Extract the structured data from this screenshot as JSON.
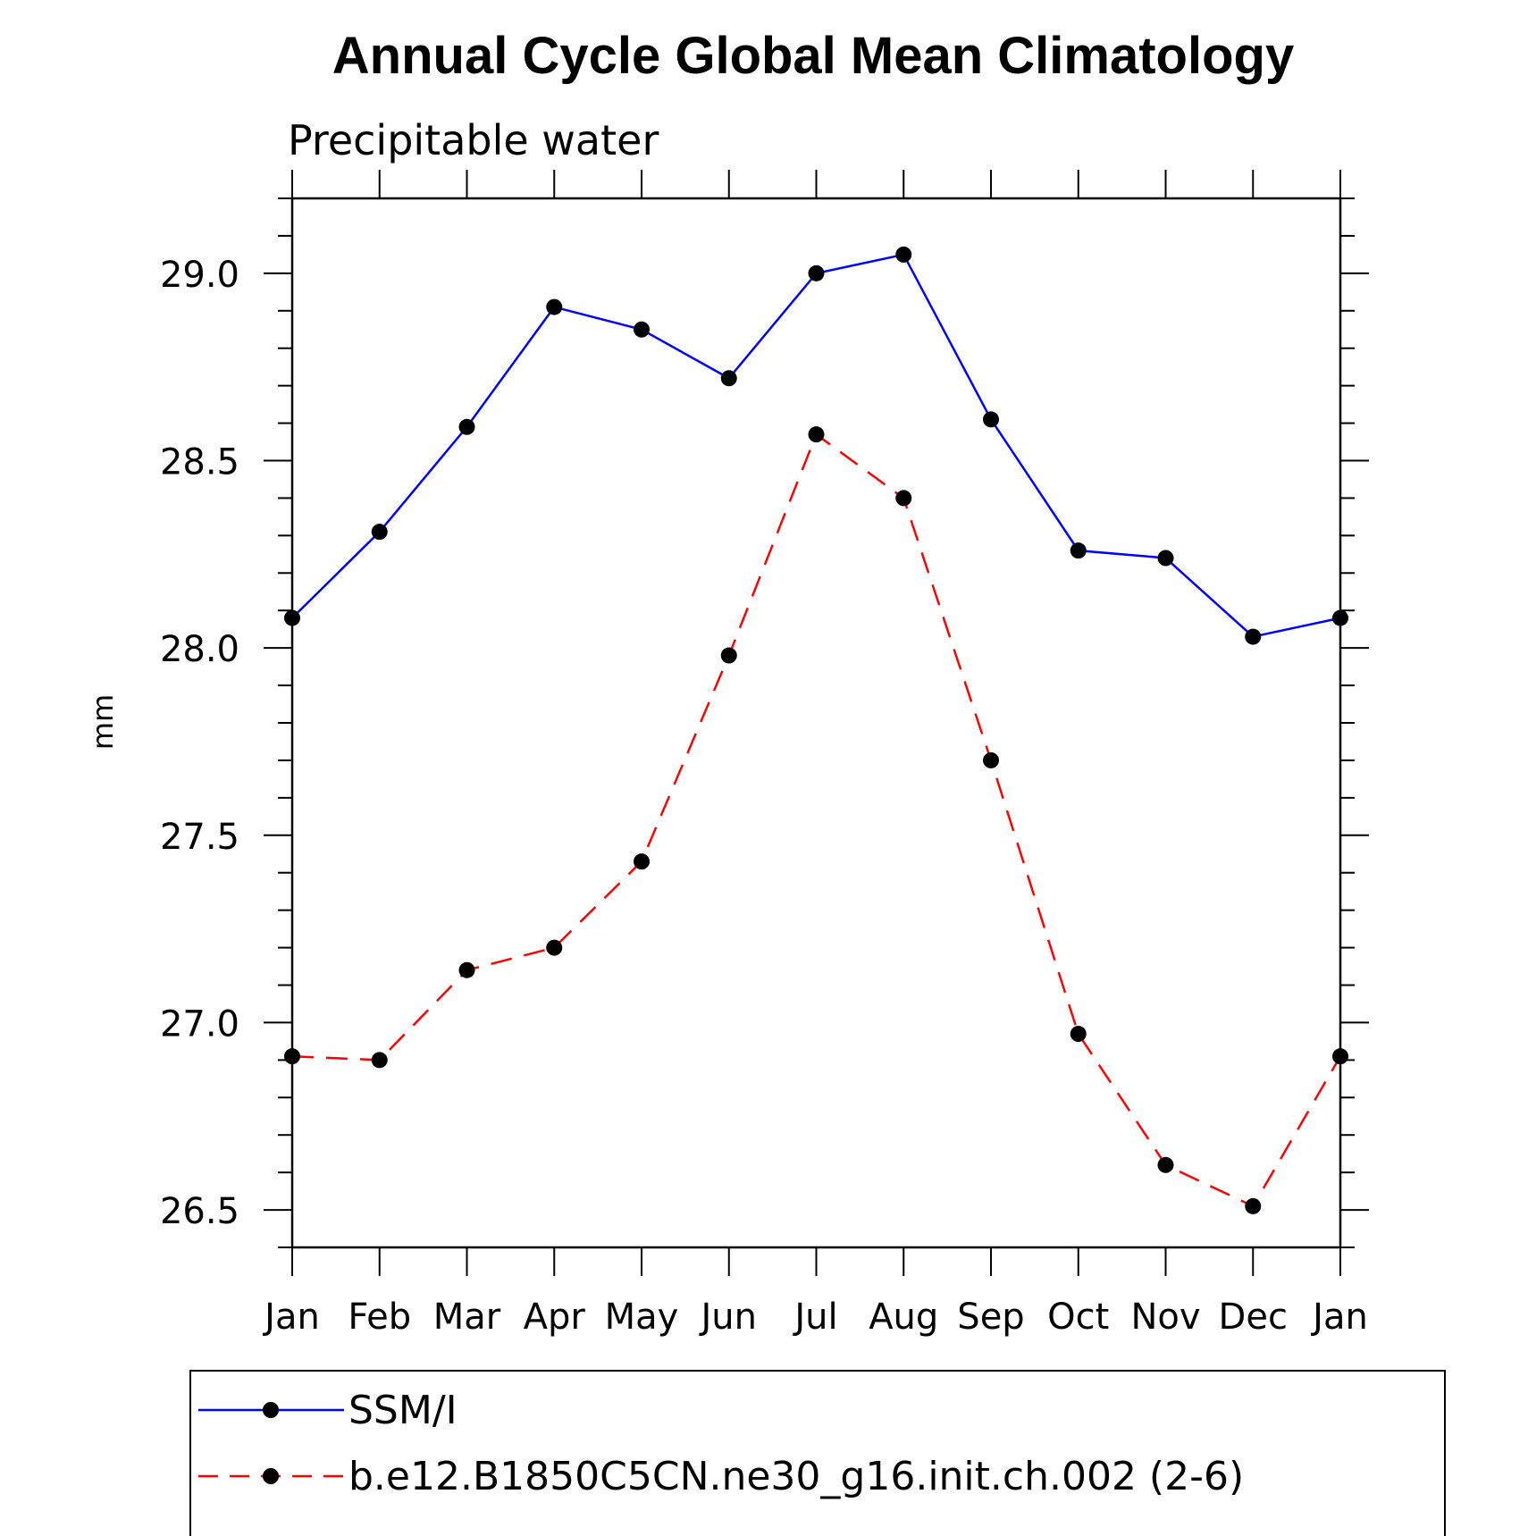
{
  "chart_data": {
    "type": "line",
    "title": "Annual Cycle Global Mean Climatology",
    "subtitle": "Precipitable water",
    "xlabel": "",
    "ylabel": "mm",
    "categories": [
      "Jan",
      "Feb",
      "Mar",
      "Apr",
      "May",
      "Jun",
      "Jul",
      "Aug",
      "Sep",
      "Oct",
      "Nov",
      "Dec",
      "Jan"
    ],
    "ylim": [
      26.4,
      29.2
    ],
    "yticks": [
      "26.5",
      "27.0",
      "27.5",
      "28.0",
      "28.5",
      "29.0"
    ],
    "grid": false,
    "legend_position": "bottom",
    "series": [
      {
        "name": "SSM/I",
        "color": "#0000ff",
        "dash": "solid",
        "marker": "filled-circle",
        "values": [
          28.08,
          28.31,
          28.59,
          28.91,
          28.85,
          28.72,
          29.0,
          29.05,
          28.61,
          28.26,
          28.24,
          28.03,
          28.08
        ]
      },
      {
        "name": "b.e12.B1850C5CN.ne30_g16.init.ch.002 (2-6)",
        "color": "#ff0000",
        "dash": "dashed",
        "marker": "filled-circle",
        "values": [
          26.91,
          26.9,
          27.14,
          27.2,
          27.43,
          27.98,
          28.57,
          28.4,
          27.7,
          26.97,
          26.62,
          26.51,
          26.91
        ]
      }
    ]
  }
}
